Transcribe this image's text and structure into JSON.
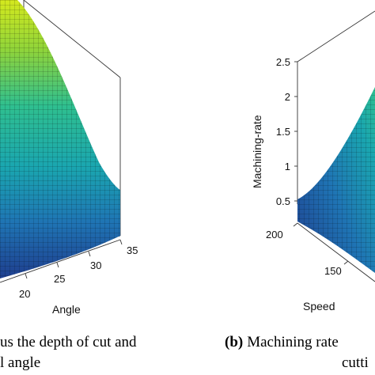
{
  "chart_data": [
    {
      "type": "surface",
      "panel": "left",
      "xlabel": "Angle",
      "x_ticks": [
        "20",
        "25",
        "30",
        "35"
      ],
      "xlim": [
        15,
        35
      ],
      "caption_lines": [
        "us the depth of cut and",
        "l angle"
      ],
      "colors": {
        "low": "#1f3f8f",
        "mid": "#1aa6b0",
        "high": "#d4e81e"
      }
    },
    {
      "type": "surface",
      "panel": "right",
      "zlabel": "Machining-rate",
      "z_ticks": [
        "0.5",
        "1",
        "1.5",
        "2",
        "2.5"
      ],
      "zlim": [
        0.5,
        2.5
      ],
      "ylabel": "Speed",
      "y_ticks": [
        "200",
        "150"
      ],
      "caption_prefix": "(b)",
      "caption_lines": [
        "Machining rate",
        "cutti"
      ],
      "colors": {
        "low": "#1f3f8f",
        "mid": "#1aa6b0",
        "high": "#d4e81e"
      }
    }
  ]
}
